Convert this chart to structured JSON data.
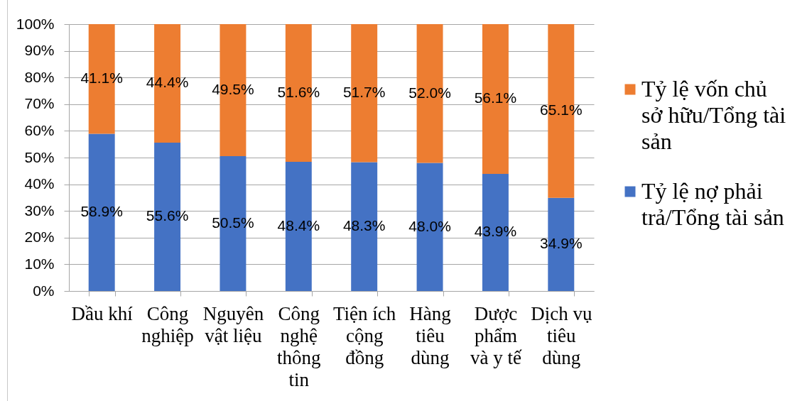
{
  "chart_data": {
    "type": "bar",
    "categories": [
      "Dầu khí",
      "Công nghiệp",
      "Nguyên vật liệu",
      "Công nghệ thông tin",
      "Tiện ích cộng đồng",
      "Hàng tiêu dùng",
      "Dược phẩm và y tế",
      "Dịch vụ tiêu dùng"
    ],
    "series": [
      {
        "name": "Tỷ lệ nợ phải trả/Tổng tài sản",
        "color": "#4472c4",
        "values": [
          58.9,
          55.6,
          50.5,
          48.4,
          48.3,
          48.0,
          43.9,
          34.9
        ],
        "value_labels": [
          "58.9%",
          "55.6%",
          "50.5%",
          "48.4%",
          "48.3%",
          "48.0%",
          "43.9%",
          "34.9%"
        ]
      },
      {
        "name": "Tỷ lệ vốn chủ sở hữu/Tổng tài sản",
        "color": "#ed7d31",
        "values": [
          41.1,
          44.4,
          49.5,
          51.6,
          51.7,
          52.0,
          56.1,
          65.1
        ],
        "value_labels": [
          "41.1%",
          "44.4%",
          "49.5%",
          "51.6%",
          "51.7%",
          "52.0%",
          "56.1%",
          "65.1%"
        ]
      }
    ],
    "stacked": true,
    "ylim": [
      0,
      100
    ],
    "yticks": [
      {
        "value": 0,
        "label": "0%"
      },
      {
        "value": 10,
        "label": "10%"
      },
      {
        "value": 20,
        "label": "20%"
      },
      {
        "value": 30,
        "label": "30%"
      },
      {
        "value": 40,
        "label": "40%"
      },
      {
        "value": 50,
        "label": "50%"
      },
      {
        "value": 60,
        "label": "60%"
      },
      {
        "value": 70,
        "label": "70%"
      },
      {
        "value": 80,
        "label": "80%"
      },
      {
        "value": 90,
        "label": "90%"
      },
      {
        "value": 100,
        "label": "100%"
      }
    ],
    "grid": "y",
    "legend": "right"
  }
}
